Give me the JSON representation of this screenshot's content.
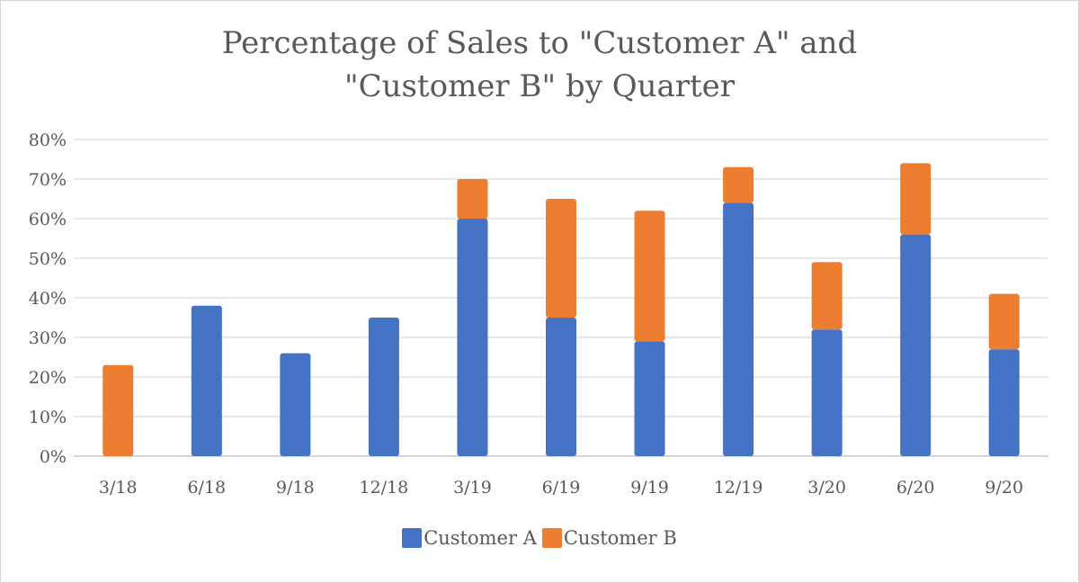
{
  "chart_data": {
    "type": "bar",
    "stacked": true,
    "title_lines": [
      "Percentage of Sales to \"Customer A\" and",
      "\"Customer B\" by Quarter"
    ],
    "categories": [
      "3/18",
      "6/18",
      "9/18",
      "12/18",
      "3/19",
      "6/19",
      "9/19",
      "12/19",
      "3/20",
      "6/20",
      "9/20"
    ],
    "series": [
      {
        "name": "Customer A",
        "color": "#4472c4",
        "values": [
          0,
          38,
          26,
          35,
          60,
          35,
          29,
          64,
          32,
          56,
          27
        ]
      },
      {
        "name": "Customer B",
        "color": "#ed7d31",
        "values": [
          23,
          0,
          0,
          0,
          10,
          30,
          33,
          9,
          17,
          18,
          14
        ]
      }
    ],
    "y_ticks": [
      "0%",
      "10%",
      "20%",
      "30%",
      "40%",
      "50%",
      "60%",
      "70%",
      "80%"
    ],
    "ylim": [
      0,
      80
    ],
    "grid": true,
    "legend_position": "bottom"
  }
}
